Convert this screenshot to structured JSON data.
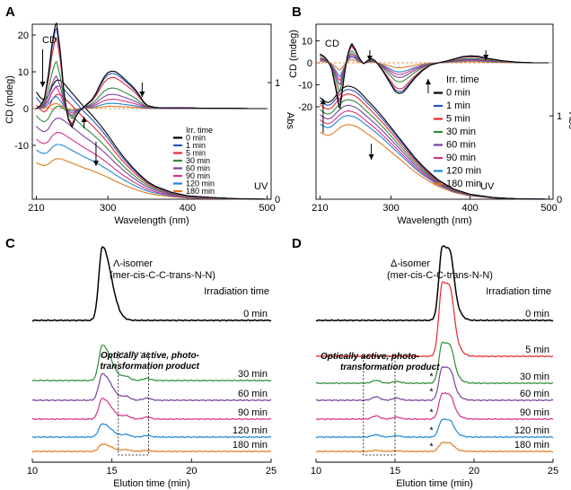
{
  "chart_data": [
    {
      "panel": "A",
      "type": "line",
      "xlabel": "Wavelength (nm)",
      "ylabel": "CD (mdeg)",
      "ylabel_right": "Abs",
      "xlim": [
        205,
        505
      ],
      "ylim": [
        -17,
        25
      ],
      "ylim_right": [
        0,
        1.5
      ],
      "xticks": [
        210,
        300,
        400,
        500
      ],
      "yticks": [
        -10,
        0,
        10,
        20
      ],
      "yticks_right": [
        0,
        1
      ],
      "annotations": {
        "cd": "CD",
        "uv": "UV"
      },
      "legend": {
        "title": "Irr. time",
        "placement": "right-middle",
        "entries": [
          "0 min",
          "1 min",
          "5 min",
          "30 min",
          "60 min",
          "90 min",
          "120 min",
          "180 min"
        ]
      },
      "colors": [
        "#000000",
        "#2a52be",
        "#e8282b",
        "#2e8b3a",
        "#7b3fa0",
        "#d6318c",
        "#1f87d6",
        "#e07b20"
      ],
      "cd_series": {
        "x": [
          210,
          215,
          220,
          225,
          230,
          235,
          240,
          245,
          250,
          255,
          260,
          265,
          270,
          275,
          280,
          285,
          290,
          295,
          300,
          305,
          310,
          315,
          320,
          325,
          330,
          335,
          340,
          345,
          350,
          360,
          370,
          380,
          390,
          400,
          420,
          450,
          480,
          500
        ],
        "base": [
          0,
          0.8,
          2.5,
          9,
          18,
          24,
          16,
          4,
          -3,
          -5,
          -2,
          -0.5,
          0.5,
          1.5,
          2.5,
          4.2,
          6.5,
          8.5,
          9.8,
          10.2,
          10.0,
          9.2,
          8.2,
          7.2,
          6.2,
          5.0,
          3.5,
          1.8,
          0.8,
          0.3,
          0.2,
          0.2,
          0.2,
          0.2,
          0.1,
          0.1,
          0,
          0
        ],
        "fractions": [
          1.0,
          0.94,
          0.83,
          0.55,
          0.38,
          0.25,
          0.14,
          0.06
        ]
      },
      "uv_series": {
        "x": [
          210,
          215,
          220,
          225,
          230,
          235,
          240,
          245,
          250,
          255,
          260,
          265,
          270,
          280,
          290,
          300,
          310,
          320,
          330,
          340,
          350,
          360,
          380,
          400,
          430,
          460,
          500
        ],
        "base": [
          0.92,
          0.87,
          0.85,
          0.88,
          0.97,
          1.02,
          1.02,
          0.99,
          0.95,
          0.91,
          0.87,
          0.83,
          0.79,
          0.72,
          0.64,
          0.55,
          0.45,
          0.36,
          0.28,
          0.21,
          0.15,
          0.11,
          0.06,
          0.03,
          0.015,
          0.005,
          0
        ],
        "fractions": [
          1.0,
          0.95,
          0.88,
          0.78,
          0.68,
          0.56,
          0.46,
          0.34
        ]
      }
    },
    {
      "panel": "B",
      "type": "line",
      "xlabel": "Wavelength (nm)",
      "ylabel": "CD (mdeg)",
      "ylabel_right": "Abs",
      "xlim": [
        205,
        505
      ],
      "ylim": [
        -32,
        12
      ],
      "ylim_right": [
        0,
        2.1
      ],
      "xticks": [
        210,
        300,
        400,
        500
      ],
      "yticks": [
        -20,
        -10,
        0,
        10
      ],
      "yticks_right": [
        0,
        1
      ],
      "annotations": {
        "cd": "CD",
        "uv": "UV"
      },
      "legend": {
        "title": "Irr. time",
        "placement": "right-middle",
        "entries": [
          "0 min",
          "1 min",
          "5 min",
          "30 min",
          "60 min",
          "90 min",
          "120 min",
          "180 min"
        ]
      },
      "colors": [
        "#000000",
        "#2a52be",
        "#e8282b",
        "#2e8b3a",
        "#7b3fa0",
        "#d6318c",
        "#1f87d6",
        "#e07b20"
      ],
      "cd_series": {
        "x": [
          210,
          215,
          220,
          225,
          230,
          235,
          240,
          245,
          250,
          255,
          260,
          265,
          270,
          275,
          280,
          290,
          300,
          305,
          310,
          315,
          320,
          330,
          340,
          350,
          360,
          370,
          380,
          390,
          400,
          410,
          420,
          440,
          460,
          480,
          500
        ],
        "base": [
          4,
          3,
          1,
          -3,
          -12,
          -22,
          -8,
          4,
          9,
          6,
          2,
          -0.5,
          1,
          2,
          1,
          -4,
          -10,
          -13,
          -14,
          -13.5,
          -11.5,
          -7,
          -3.5,
          -1,
          0,
          0.8,
          1.8,
          2.8,
          3.2,
          3.0,
          2.2,
          1.0,
          0.3,
          0,
          0
        ],
        "fractions": [
          1.0,
          0.94,
          0.85,
          0.62,
          0.48,
          0.38,
          0.3,
          0.16
        ]
      },
      "uv_series": {
        "x": [
          210,
          215,
          220,
          225,
          230,
          235,
          240,
          245,
          250,
          255,
          260,
          265,
          270,
          280,
          290,
          300,
          310,
          320,
          330,
          340,
          350,
          360,
          380,
          400,
          430,
          460,
          500
        ],
        "base": [
          1.22,
          1.18,
          1.16,
          1.18,
          1.24,
          1.3,
          1.34,
          1.36,
          1.35,
          1.33,
          1.29,
          1.24,
          1.19,
          1.09,
          0.98,
          0.86,
          0.74,
          0.62,
          0.5,
          0.4,
          0.31,
          0.23,
          0.12,
          0.06,
          0.02,
          0.005,
          0
        ],
        "fractions": [
          1.0,
          0.97,
          0.93,
          0.88,
          0.83,
          0.78,
          0.74,
          0.66
        ]
      }
    },
    {
      "panel": "C",
      "type": "line",
      "xlabel": "Elution time (min)",
      "xlim": [
        10,
        25
      ],
      "xticks": [
        10,
        15,
        20,
        25
      ],
      "title": "Λ-isomer",
      "subtitle": "(mer-cis-C-C-trans-N-N)",
      "irradiation_label": "Irradiation time",
      "product_label_1": "Optically active, photo-",
      "product_label_2": "transformation product",
      "main_peak_at": 14.4,
      "product_peak_at": 15.9,
      "traces": [
        {
          "name": "0 min",
          "color": "#000000",
          "height": 1.0,
          "product": 0.0,
          "scale": 1.0
        },
        {
          "name": "30 min",
          "color": "#2e8b3a",
          "height": 0.48,
          "product": 0.22,
          "scale": 1.0
        },
        {
          "name": "60 min",
          "color": "#7b3fa0",
          "height": 0.36,
          "product": 0.22,
          "scale": 1.0
        },
        {
          "name": "90 min",
          "color": "#d6318c",
          "height": 0.28,
          "product": 0.2,
          "scale": 1.0
        },
        {
          "name": "120 min",
          "color": "#1f87d6",
          "height": 0.18,
          "product": 0.15,
          "scale": 1.0
        },
        {
          "name": "180 min",
          "color": "#e07b20",
          "height": 0.1,
          "product": 0.1,
          "scale": 1.0
        }
      ]
    },
    {
      "panel": "D",
      "type": "line",
      "xlabel": "Elution time (min)",
      "xlim": [
        10,
        25
      ],
      "xticks": [
        10,
        15,
        20,
        25
      ],
      "title": "Δ-isomer",
      "subtitle": "(mer-cis-C-C-trans-N-N)",
      "irradiation_label": "Irradiation time",
      "product_label_1": "Optically active, photo-",
      "product_label_2": "transformation product",
      "star": "*",
      "main_peak_at": 18.0,
      "product_peak_at": 13.8,
      "traces": [
        {
          "name": "0 min",
          "color": "#000000",
          "height": 1.0,
          "product": 0.0,
          "star": false
        },
        {
          "name": "5 min",
          "color": "#e8282b",
          "height": 1.0,
          "product": 0.02,
          "star": false
        },
        {
          "name": "30 min",
          "color": "#2e8b3a",
          "height": 0.55,
          "product": 0.2,
          "star": true
        },
        {
          "name": "60 min",
          "color": "#7b3fa0",
          "height": 0.45,
          "product": 0.24,
          "star": true
        },
        {
          "name": "90 min",
          "color": "#d6318c",
          "height": 0.35,
          "product": 0.22,
          "star": true
        },
        {
          "name": "120 min",
          "color": "#1f87d6",
          "height": 0.24,
          "product": 0.16,
          "star": true
        },
        {
          "name": "180 min",
          "color": "#e07b20",
          "height": 0.12,
          "product": 0.08,
          "star": true
        }
      ]
    }
  ],
  "panel_letters": [
    "A",
    "B",
    "C",
    "D"
  ]
}
